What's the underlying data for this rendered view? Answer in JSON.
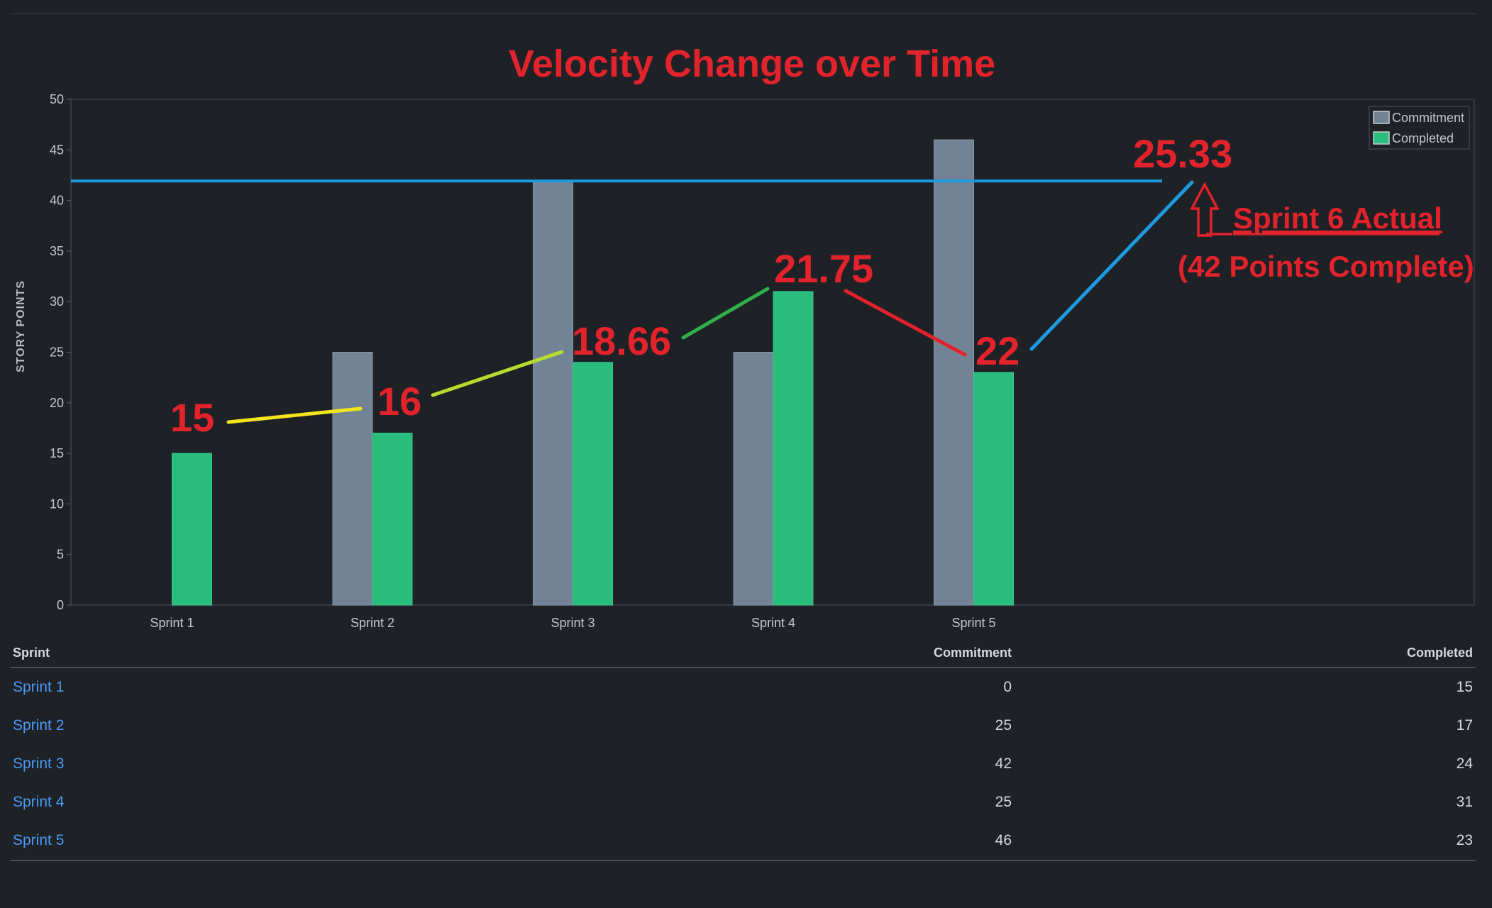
{
  "chart_data": {
    "type": "bar",
    "title": "Velocity Change over Time",
    "ylabel": "STORY POINTS",
    "xlabel": "",
    "ylim": [
      0,
      50
    ],
    "yticks": [
      0,
      5,
      10,
      15,
      20,
      25,
      30,
      35,
      40,
      45,
      50
    ],
    "categories": [
      "Sprint 1",
      "Sprint 2",
      "Sprint 3",
      "Sprint 4",
      "Sprint 5"
    ],
    "series": [
      {
        "name": "Commitment",
        "values": [
          0,
          25,
          42,
          25,
          46
        ],
        "color": "#738396"
      },
      {
        "name": "Completed",
        "values": [
          15,
          17,
          24,
          31,
          23
        ],
        "color": "#2bbd7e"
      }
    ],
    "legend_position": "top-right",
    "grid": false,
    "reference_line": {
      "value": 42,
      "color": "#1d9ae0"
    },
    "annotations": {
      "values": [
        "15",
        "16",
        "18.66",
        "21.75",
        "22",
        "25.33"
      ],
      "sprint6_label": "Sprint 6 Actual",
      "sprint6_note": "(42 Points Complete)"
    }
  },
  "table": {
    "headers": [
      "Sprint",
      "Commitment",
      "Completed"
    ],
    "rows": [
      [
        "Sprint 1",
        "0",
        "15"
      ],
      [
        "Sprint 2",
        "25",
        "17"
      ],
      [
        "Sprint 3",
        "42",
        "24"
      ],
      [
        "Sprint 4",
        "25",
        "31"
      ],
      [
        "Sprint 5",
        "46",
        "23"
      ]
    ]
  }
}
